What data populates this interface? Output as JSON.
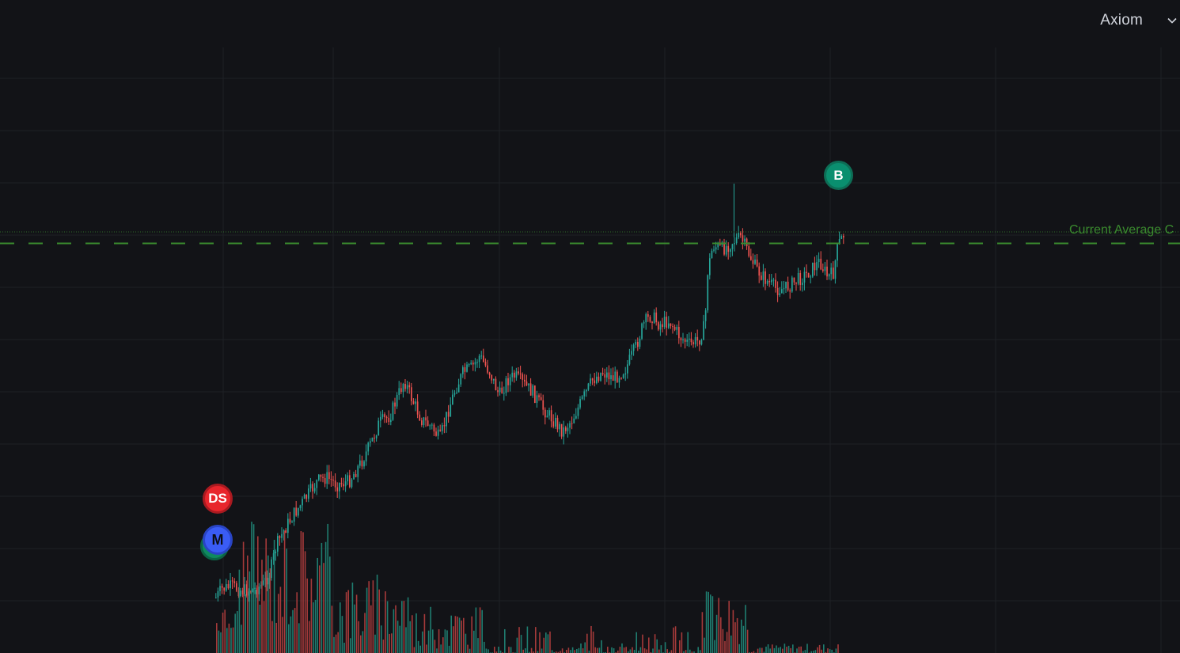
{
  "header": {
    "selector_label": "Axiom",
    "selector_icon": "chevron-down-icon"
  },
  "chart": {
    "average_line_label": "Current Average C",
    "average_line_color": "#3a8a2e",
    "up_color": "#26a69a",
    "down_color": "#ef5350",
    "grid_color": "#1e2026",
    "background": "#121317"
  },
  "markers": {
    "buy": "B",
    "dev_sell": "DS",
    "migration": "M"
  }
}
